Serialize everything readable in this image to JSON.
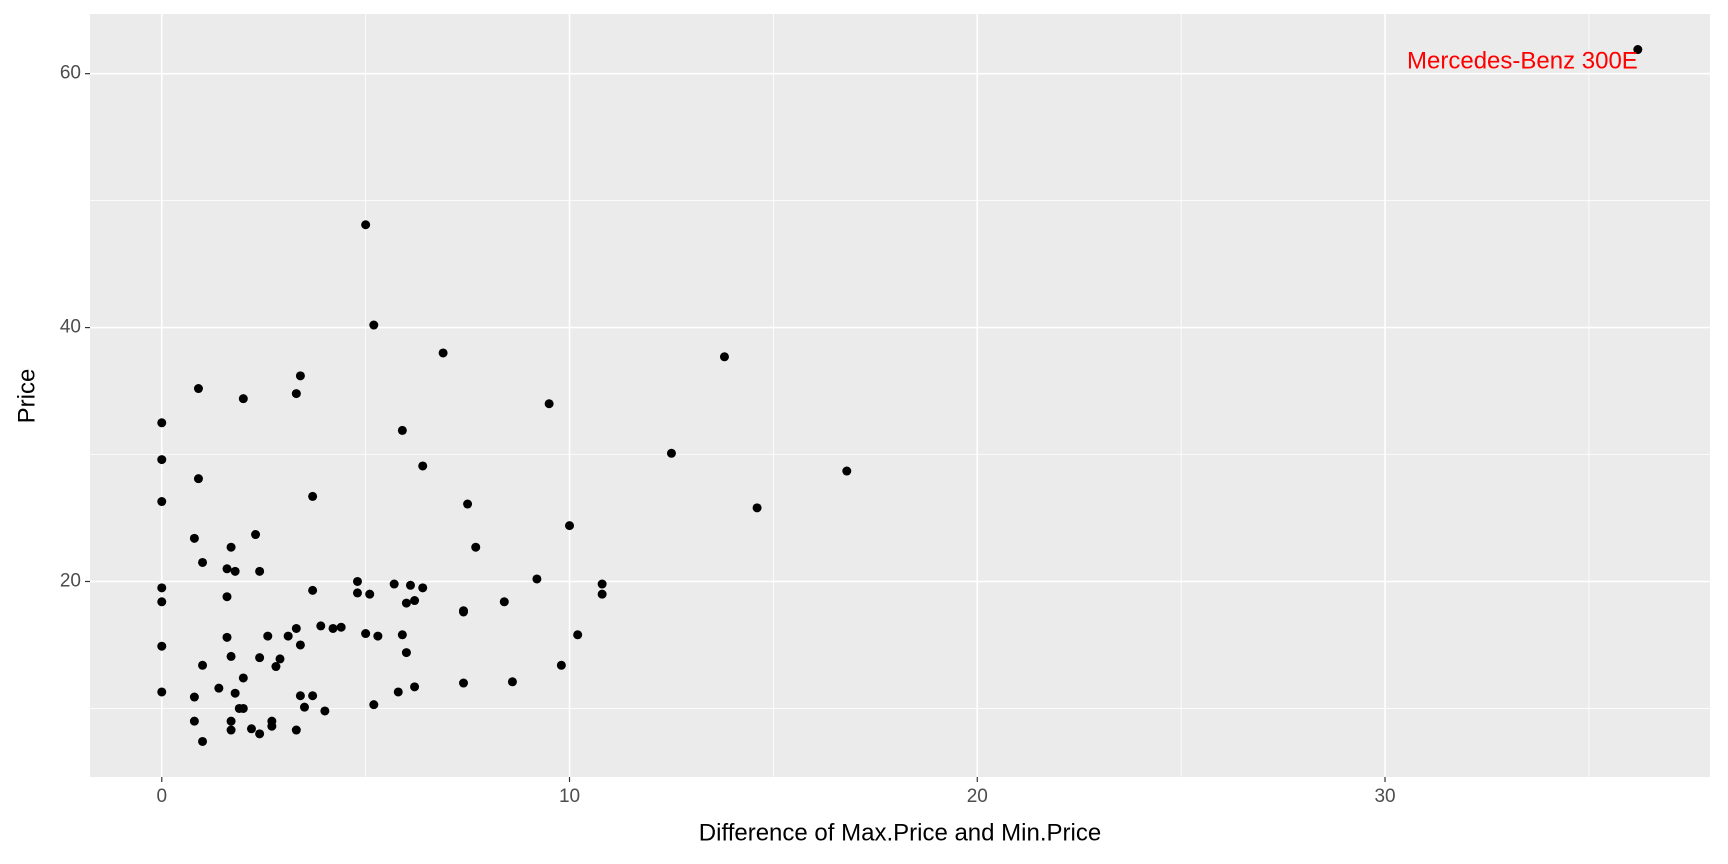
{
  "chart_data": {
    "type": "scatter",
    "x_label": "Difference of Max.Price and Min.Price",
    "y_label": "Price",
    "xlim": [
      -1.76,
      37.97
    ],
    "ylim": [
      4.6,
      64.7
    ],
    "xticks": [
      0,
      10,
      20,
      30
    ],
    "yticks": [
      20,
      40,
      60
    ],
    "minor_xticks": [
      5,
      15,
      25,
      35
    ],
    "minor_yticks": [
      10,
      30,
      50
    ],
    "grid": true,
    "panel_color": "#ebebeb",
    "color": "#000000",
    "x": [
      0,
      0,
      0,
      0,
      0,
      0,
      0,
      0.9,
      0.9,
      0.8,
      1.0,
      0.8,
      0.8,
      1.0,
      1.0,
      1.4,
      1.6,
      1.8,
      1.7,
      1.6,
      1.6,
      1.7,
      1.7,
      1.7,
      1.8,
      1.9,
      2.0,
      2.0,
      2.0,
      2.2,
      2.3,
      2.4,
      2.4,
      2.4,
      2.6,
      2.7,
      2.7,
      2.8,
      2.9,
      3.1,
      3.3,
      3.4,
      3.3,
      3.4,
      3.3,
      3.4,
      3.5,
      3.7,
      3.7,
      3.7,
      3.9,
      4.0,
      4.2,
      4.4,
      4.8,
      4.8,
      5.0,
      5.1,
      5.0,
      5.2,
      5.3,
      5.2,
      5.7,
      5.8,
      5.9,
      5.9,
      6.0,
      6.0,
      6.1,
      6.2,
      6.2,
      6.4,
      6.4,
      6.9,
      7.4,
      7.4,
      7.4,
      7.5,
      7.7,
      8.4,
      8.6,
      9.2,
      9.5,
      9.8,
      10.0,
      10.2,
      10.8,
      10.8,
      12.5,
      13.8,
      14.6,
      16.8,
      36.2
    ],
    "values": [
      32.5,
      29.6,
      26.3,
      19.5,
      18.4,
      14.9,
      11.3,
      35.2,
      28.1,
      23.4,
      21.5,
      10.9,
      9.0,
      13.4,
      7.4,
      11.6,
      21.0,
      20.8,
      22.7,
      18.8,
      15.6,
      14.1,
      9.0,
      8.3,
      11.2,
      10.0,
      10.0,
      12.4,
      34.4,
      8.4,
      23.7,
      20.8,
      14.0,
      8.0,
      15.7,
      9.0,
      8.6,
      13.3,
      13.9,
      15.7,
      34.8,
      36.2,
      16.3,
      15.0,
      8.3,
      11.0,
      10.1,
      11.0,
      26.7,
      19.3,
      16.5,
      9.8,
      16.3,
      16.4,
      20.0,
      19.1,
      48.1,
      19.0,
      15.9,
      40.2,
      15.7,
      10.3,
      19.8,
      11.3,
      31.9,
      15.8,
      18.3,
      14.4,
      19.7,
      18.5,
      11.7,
      29.1,
      19.5,
      38.0,
      17.6,
      17.7,
      12.0,
      26.1,
      22.7,
      18.4,
      12.1,
      20.2,
      34.0,
      13.4,
      24.4,
      15.8,
      19.8,
      19.0,
      30.1,
      37.7,
      25.8,
      28.7,
      61.9
    ],
    "annotations": [
      {
        "text": "Mercedes-Benz 300E",
        "x": 36.2,
        "y": 60.9,
        "color": "#ff0000"
      }
    ]
  }
}
